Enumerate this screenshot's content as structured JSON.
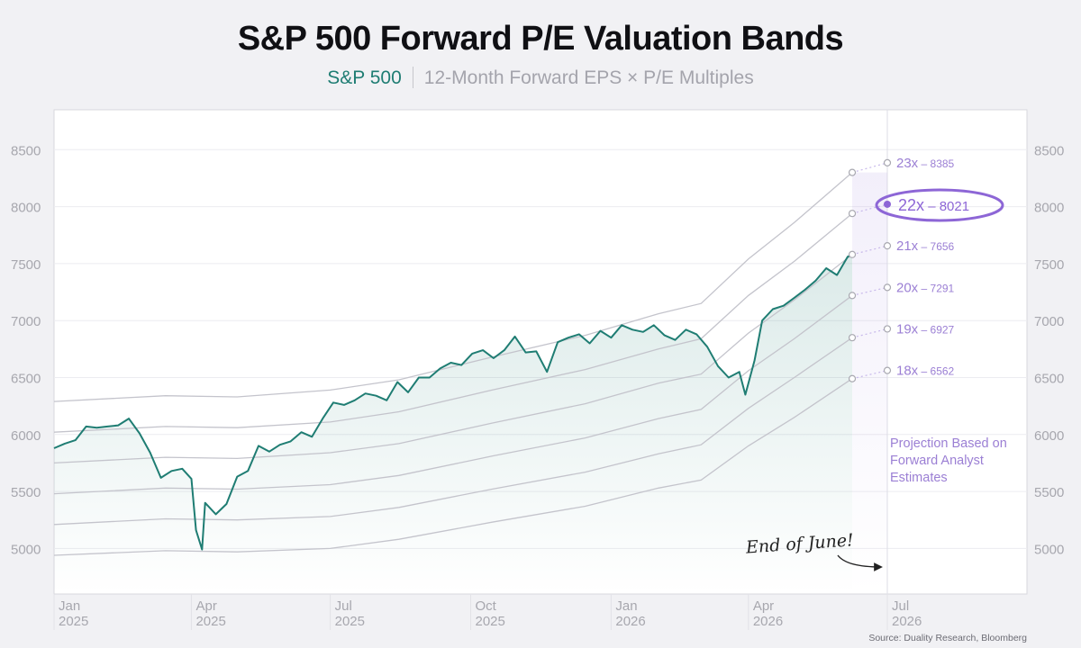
{
  "title": "S&P 500 Forward P/E Valuation Bands",
  "subtitle": {
    "series_label": "S&P 500",
    "description": "12-Month Forward EPS × P/E Multiples"
  },
  "source": "Source: Duality Research, Bloomberg",
  "colors": {
    "index_line": "#1f7d73",
    "band_lines": "#c4c4cc",
    "projection": "#9b7fd4",
    "highlight_band": "#8d66d6"
  },
  "chart_data": {
    "type": "line",
    "ylim": [
      4600,
      8850
    ],
    "yticks": [
      5000,
      5500,
      6000,
      6500,
      7000,
      7500,
      8000,
      8500
    ],
    "grid": true,
    "x_ticks": [
      {
        "month": "Jan",
        "year": "2025",
        "date": "2025-01"
      },
      {
        "month": "Apr",
        "year": "2025",
        "date": "2025-04"
      },
      {
        "month": "Jul",
        "year": "2025",
        "date": "2025-07"
      },
      {
        "month": "Oct",
        "year": "2025",
        "date": "2025-10"
      },
      {
        "month": "Jan",
        "year": "2026",
        "date": "2026-01"
      },
      {
        "month": "Apr",
        "year": "2026",
        "date": "2026-04"
      },
      {
        "month": "Jul",
        "year": "2026",
        "date": "2026-07"
      }
    ],
    "x_range": [
      "2025-01",
      "2026-07"
    ],
    "series": [
      {
        "name": "S&P 500",
        "points": [
          [
            "2025-01-01",
            5880
          ],
          [
            "2025-01-08",
            5920
          ],
          [
            "2025-01-15",
            5950
          ],
          [
            "2025-01-22",
            6070
          ],
          [
            "2025-01-29",
            6060
          ],
          [
            "2025-02-05",
            6070
          ],
          [
            "2025-02-12",
            6080
          ],
          [
            "2025-02-19",
            6140
          ],
          [
            "2025-02-26",
            6010
          ],
          [
            "2025-03-05",
            5840
          ],
          [
            "2025-03-12",
            5620
          ],
          [
            "2025-03-19",
            5680
          ],
          [
            "2025-03-26",
            5700
          ],
          [
            "2025-04-01",
            5610
          ],
          [
            "2025-04-04",
            5160
          ],
          [
            "2025-04-08",
            4990
          ],
          [
            "2025-04-10",
            5400
          ],
          [
            "2025-04-17",
            5300
          ],
          [
            "2025-04-24",
            5390
          ],
          [
            "2025-05-01",
            5630
          ],
          [
            "2025-05-08",
            5680
          ],
          [
            "2025-05-15",
            5900
          ],
          [
            "2025-05-22",
            5850
          ],
          [
            "2025-05-29",
            5910
          ],
          [
            "2025-06-05",
            5940
          ],
          [
            "2025-06-12",
            6020
          ],
          [
            "2025-06-19",
            5980
          ],
          [
            "2025-06-26",
            6140
          ],
          [
            "2025-07-03",
            6280
          ],
          [
            "2025-07-10",
            6260
          ],
          [
            "2025-07-17",
            6300
          ],
          [
            "2025-07-24",
            6360
          ],
          [
            "2025-07-31",
            6340
          ],
          [
            "2025-08-07",
            6300
          ],
          [
            "2025-08-14",
            6460
          ],
          [
            "2025-08-21",
            6370
          ],
          [
            "2025-08-28",
            6500
          ],
          [
            "2025-09-04",
            6500
          ],
          [
            "2025-09-11",
            6580
          ],
          [
            "2025-09-18",
            6630
          ],
          [
            "2025-09-25",
            6610
          ],
          [
            "2025-10-02",
            6710
          ],
          [
            "2025-10-09",
            6740
          ],
          [
            "2025-10-16",
            6670
          ],
          [
            "2025-10-23",
            6740
          ],
          [
            "2025-10-30",
            6860
          ],
          [
            "2025-11-06",
            6720
          ],
          [
            "2025-11-13",
            6730
          ],
          [
            "2025-11-20",
            6550
          ],
          [
            "2025-11-27",
            6810
          ],
          [
            "2025-12-04",
            6850
          ],
          [
            "2025-12-11",
            6880
          ],
          [
            "2025-12-18",
            6800
          ],
          [
            "2025-12-25",
            6910
          ],
          [
            "2026-01-01",
            6850
          ],
          [
            "2026-01-08",
            6960
          ],
          [
            "2026-01-15",
            6920
          ],
          [
            "2026-01-22",
            6900
          ],
          [
            "2026-01-29",
            6960
          ],
          [
            "2026-02-05",
            6870
          ],
          [
            "2026-02-12",
            6830
          ],
          [
            "2026-02-19",
            6920
          ],
          [
            "2026-02-26",
            6880
          ],
          [
            "2026-03-05",
            6770
          ],
          [
            "2026-03-12",
            6600
          ],
          [
            "2026-03-19",
            6500
          ],
          [
            "2026-03-26",
            6550
          ],
          [
            "2026-03-30",
            6350
          ],
          [
            "2026-04-05",
            6650
          ],
          [
            "2026-04-10",
            7000
          ],
          [
            "2026-04-17",
            7100
          ],
          [
            "2026-04-24",
            7130
          ],
          [
            "2026-05-01",
            7200
          ],
          [
            "2026-05-08",
            7270
          ],
          [
            "2026-05-15",
            7350
          ],
          [
            "2026-05-22",
            7460
          ],
          [
            "2026-05-29",
            7400
          ],
          [
            "2026-06-05",
            7560
          ],
          [
            "2026-06-08",
            7580
          ]
        ]
      }
    ],
    "bands": [
      {
        "multiple": "18x",
        "value": "6562",
        "end": [
          "2026-06-08",
          6490
        ],
        "points": [
          [
            "2025-01-01",
            4940
          ],
          [
            "2025-03-15",
            4980
          ],
          [
            "2025-05-01",
            4970
          ],
          [
            "2025-07-01",
            5000
          ],
          [
            "2025-08-15",
            5080
          ],
          [
            "2025-10-15",
            5230
          ],
          [
            "2025-12-15",
            5370
          ],
          [
            "2026-02-01",
            5530
          ],
          [
            "2026-03-01",
            5600
          ],
          [
            "2026-04-01",
            5900
          ],
          [
            "2026-05-01",
            6150
          ],
          [
            "2026-06-08",
            6490
          ]
        ]
      },
      {
        "multiple": "19x",
        "value": "6927",
        "end": [
          "2026-06-08",
          6850
        ],
        "points": [
          [
            "2025-01-01",
            5210
          ],
          [
            "2025-03-15",
            5260
          ],
          [
            "2025-05-01",
            5250
          ],
          [
            "2025-07-01",
            5280
          ],
          [
            "2025-08-15",
            5360
          ],
          [
            "2025-10-15",
            5520
          ],
          [
            "2025-12-15",
            5670
          ],
          [
            "2026-02-01",
            5830
          ],
          [
            "2026-03-01",
            5910
          ],
          [
            "2026-04-01",
            6230
          ],
          [
            "2026-05-01",
            6500
          ],
          [
            "2026-06-08",
            6850
          ]
        ]
      },
      {
        "multiple": "20x",
        "value": "7291",
        "end": [
          "2026-06-08",
          7220
        ],
        "points": [
          [
            "2025-01-01",
            5480
          ],
          [
            "2025-03-15",
            5530
          ],
          [
            "2025-05-01",
            5520
          ],
          [
            "2025-07-01",
            5560
          ],
          [
            "2025-08-15",
            5640
          ],
          [
            "2025-10-15",
            5810
          ],
          [
            "2025-12-15",
            5970
          ],
          [
            "2026-02-01",
            6140
          ],
          [
            "2026-03-01",
            6220
          ],
          [
            "2026-04-01",
            6560
          ],
          [
            "2026-05-01",
            6840
          ],
          [
            "2026-06-08",
            7220
          ]
        ]
      },
      {
        "multiple": "21x",
        "value": "7656",
        "end": [
          "2026-06-08",
          7580
        ],
        "points": [
          [
            "2025-01-01",
            5750
          ],
          [
            "2025-03-15",
            5800
          ],
          [
            "2025-05-01",
            5790
          ],
          [
            "2025-07-01",
            5840
          ],
          [
            "2025-08-15",
            5920
          ],
          [
            "2025-10-15",
            6100
          ],
          [
            "2025-12-15",
            6270
          ],
          [
            "2026-02-01",
            6450
          ],
          [
            "2026-03-01",
            6530
          ],
          [
            "2026-04-01",
            6890
          ],
          [
            "2026-05-01",
            7180
          ],
          [
            "2026-06-08",
            7580
          ]
        ]
      },
      {
        "multiple": "22x",
        "value": "8021",
        "end": [
          "2026-06-08",
          7940
        ],
        "highlight": true,
        "points": [
          [
            "2025-01-01",
            6020
          ],
          [
            "2025-03-15",
            6070
          ],
          [
            "2025-05-01",
            6060
          ],
          [
            "2025-07-01",
            6110
          ],
          [
            "2025-08-15",
            6200
          ],
          [
            "2025-10-15",
            6390
          ],
          [
            "2025-12-15",
            6570
          ],
          [
            "2026-02-01",
            6750
          ],
          [
            "2026-03-01",
            6840
          ],
          [
            "2026-04-01",
            7220
          ],
          [
            "2026-05-01",
            7520
          ],
          [
            "2026-06-08",
            7940
          ]
        ]
      },
      {
        "multiple": "23x",
        "value": "8385",
        "end": [
          "2026-06-08",
          8300
        ],
        "points": [
          [
            "2025-01-01",
            6290
          ],
          [
            "2025-03-15",
            6340
          ],
          [
            "2025-05-01",
            6330
          ],
          [
            "2025-07-01",
            6390
          ],
          [
            "2025-08-15",
            6480
          ],
          [
            "2025-10-15",
            6680
          ],
          [
            "2025-12-15",
            6870
          ],
          [
            "2026-02-01",
            7060
          ],
          [
            "2026-03-01",
            7150
          ],
          [
            "2026-04-01",
            7540
          ],
          [
            "2026-05-01",
            7860
          ],
          [
            "2026-06-08",
            8300
          ]
        ]
      }
    ],
    "projection_target_date": "2026-07-01",
    "annotations": {
      "projection_note": [
        "Projection Based on",
        "Forward Analyst",
        "Estimates"
      ],
      "end_of_june": "End of June!"
    }
  }
}
